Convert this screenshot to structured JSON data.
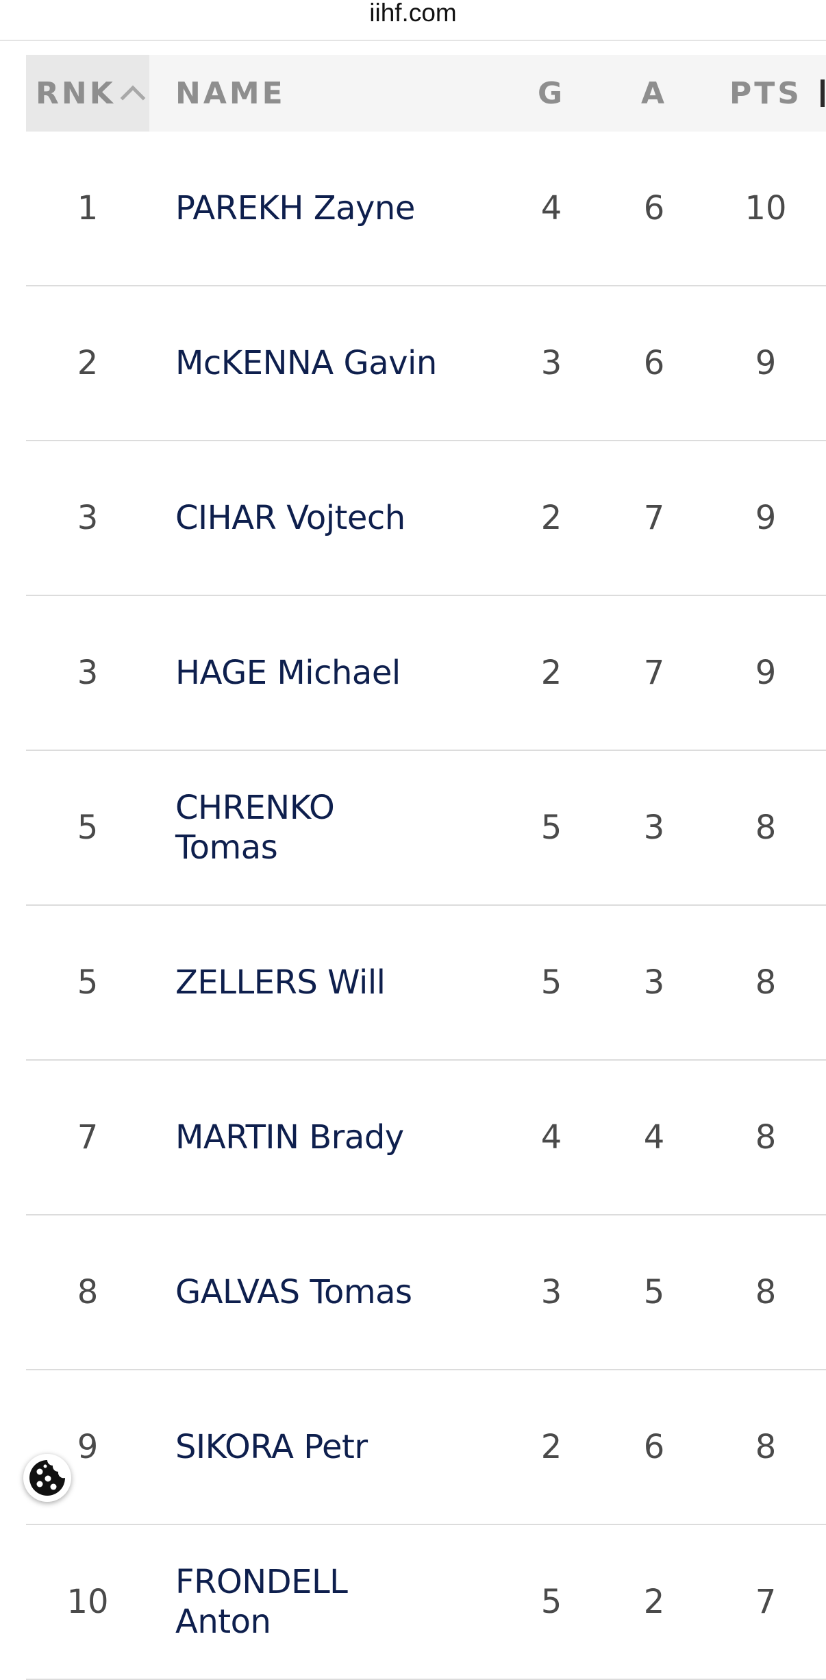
{
  "browser": {
    "url": "iihf.com"
  },
  "table": {
    "headers": {
      "rnk": "RNK",
      "name": "NAME",
      "g": "G",
      "a": "A",
      "pts": "PTS"
    },
    "rows": [
      {
        "rnk": "1",
        "name": "PAREKH Zayne",
        "g": "4",
        "a": "6",
        "pts": "10"
      },
      {
        "rnk": "2",
        "name": "McKENNA Gavin",
        "g": "3",
        "a": "6",
        "pts": "9"
      },
      {
        "rnk": "3",
        "name": "CIHAR Vojtech",
        "g": "2",
        "a": "7",
        "pts": "9"
      },
      {
        "rnk": "3",
        "name": "HAGE Michael",
        "g": "2",
        "a": "7",
        "pts": "9"
      },
      {
        "rnk": "5",
        "name": "CHRENKO Tomas",
        "g": "5",
        "a": "3",
        "pts": "8"
      },
      {
        "rnk": "5",
        "name": "ZELLERS Will",
        "g": "5",
        "a": "3",
        "pts": "8"
      },
      {
        "rnk": "7",
        "name": "MARTIN Brady",
        "g": "4",
        "a": "4",
        "pts": "8"
      },
      {
        "rnk": "8",
        "name": "GALVAS Tomas",
        "g": "3",
        "a": "5",
        "pts": "8"
      },
      {
        "rnk": "9",
        "name": "SIKORA Petr",
        "g": "2",
        "a": "6",
        "pts": "8"
      },
      {
        "rnk": "10",
        "name": "FRONDELL Anton",
        "g": "5",
        "a": "2",
        "pts": "7"
      }
    ]
  },
  "icons": {
    "sort": "chevron-up-icon",
    "cookie": "cookie-icon"
  }
}
